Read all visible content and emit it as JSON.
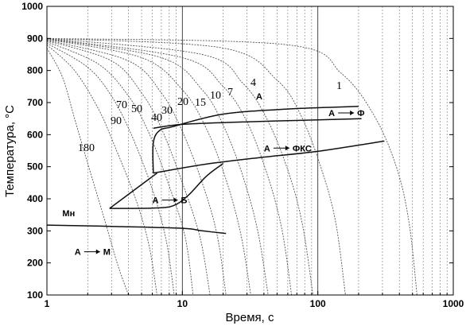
{
  "chart_data": {
    "type": "line",
    "title": "",
    "xlabel": "Время, с",
    "ylabel": "Температура, °C",
    "x_scale": "log",
    "xlim": [
      1,
      1000
    ],
    "ylim": [
      100,
      1000
    ],
    "x_ticks": [
      1,
      10,
      100,
      1000
    ],
    "x_tick_labels": [
      "1",
      "10",
      "100",
      "1000"
    ],
    "y_ticks": [
      100,
      200,
      300,
      400,
      500,
      600,
      700,
      800,
      900,
      1000
    ],
    "y_tick_labels": [
      "100",
      "200",
      "300",
      "400",
      "500",
      "600",
      "700",
      "800",
      "900",
      "1000"
    ],
    "grid": "vertical log gridlines (dotted), solid at decades",
    "cooling_curves": [
      {
        "label": "180",
        "points": [
          [
            1,
            870
          ],
          [
            1.3,
            780
          ],
          [
            1.6,
            650
          ],
          [
            2,
            510
          ],
          [
            2.6,
            350
          ],
          [
            3.3,
            200
          ],
          [
            4,
            100
          ]
        ]
      },
      {
        "label": "90",
        "points": [
          [
            1,
            880
          ],
          [
            1.6,
            800
          ],
          [
            2.4,
            680
          ],
          [
            3.2,
            560
          ],
          [
            4.6,
            390
          ],
          [
            5.7,
            250
          ],
          [
            6.5,
            100
          ]
        ]
      },
      {
        "label": "70",
        "points": [
          [
            1,
            885
          ],
          [
            2,
            810
          ],
          [
            3,
            720
          ],
          [
            4.2,
            600
          ],
          [
            6,
            430
          ],
          [
            7.6,
            270
          ],
          [
            8.7,
            100
          ]
        ]
      },
      {
        "label": "50",
        "points": [
          [
            1,
            890
          ],
          [
            2.4,
            820
          ],
          [
            4,
            720
          ],
          [
            5.6,
            610
          ],
          [
            8,
            440
          ],
          [
            10.5,
            280
          ],
          [
            12,
            100
          ]
        ]
      },
      {
        "label": "40",
        "points": [
          [
            1,
            893
          ],
          [
            3,
            830
          ],
          [
            5,
            730
          ],
          [
            7,
            620
          ],
          [
            10,
            450
          ],
          [
            13.5,
            280
          ],
          [
            16,
            100
          ]
        ]
      },
      {
        "label": "30",
        "points": [
          [
            1,
            895
          ],
          [
            4,
            830
          ],
          [
            7,
            730
          ],
          [
            10,
            610
          ],
          [
            14,
            450
          ],
          [
            18,
            290
          ],
          [
            21,
            100
          ]
        ]
      },
      {
        "label": "20",
        "points": [
          [
            1,
            897
          ],
          [
            5,
            840
          ],
          [
            10,
            740
          ],
          [
            15,
            620
          ],
          [
            21,
            460
          ],
          [
            27,
            290
          ],
          [
            32,
            100
          ]
        ]
      },
      {
        "label": "15",
        "points": [
          [
            1,
            898
          ],
          [
            7,
            840
          ],
          [
            14,
            740
          ],
          [
            20,
            630
          ],
          [
            28,
            470
          ],
          [
            36,
            300
          ],
          [
            43,
            100
          ]
        ]
      },
      {
        "label": "10",
        "points": [
          [
            1,
            899
          ],
          [
            10,
            840
          ],
          [
            20,
            750
          ],
          [
            30,
            640
          ],
          [
            42,
            480
          ],
          [
            54,
            310
          ],
          [
            64,
            100
          ]
        ]
      },
      {
        "label": "7",
        "points": [
          [
            1,
            900
          ],
          [
            14,
            850
          ],
          [
            28,
            760
          ],
          [
            42,
            650
          ],
          [
            60,
            490
          ],
          [
            77,
            320
          ],
          [
            92,
            100
          ]
        ]
      },
      {
        "label": "4",
        "points": [
          [
            1,
            900
          ],
          [
            20,
            870
          ],
          [
            50,
            770
          ],
          [
            75,
            660
          ],
          [
            105,
            500
          ],
          [
            135,
            330
          ],
          [
            160,
            100
          ]
        ]
      },
      {
        "label": "1",
        "points": [
          [
            1,
            900
          ],
          [
            60,
            880
          ],
          [
            150,
            790
          ],
          [
            260,
            660
          ],
          [
            380,
            500
          ],
          [
            470,
            330
          ],
          [
            540,
            100
          ]
        ]
      }
    ],
    "phase_boundaries": [
      {
        "name": "A→Ф start",
        "points": [
          [
            6.1,
            620
          ],
          [
            10,
            632
          ],
          [
            30,
            640
          ],
          [
            100,
            646
          ],
          [
            210,
            650
          ]
        ]
      },
      {
        "name": "A→ФКС start",
        "points": [
          [
            6.1,
            480
          ],
          [
            6.1,
            575
          ],
          [
            6.8,
            613
          ],
          [
            8.5,
            625
          ],
          [
            20,
            664
          ],
          [
            60,
            680
          ],
          [
            200,
            688
          ]
        ]
      },
      {
        "name": "A→ФКС end",
        "points": [
          [
            6.1,
            480
          ],
          [
            15,
            508
          ],
          [
            40,
            530
          ],
          [
            100,
            548
          ],
          [
            310,
            580
          ]
        ]
      },
      {
        "name": "A→Б start",
        "points": [
          [
            2.9,
            370
          ],
          [
            4.5,
            430
          ],
          [
            6.5,
            480
          ]
        ]
      },
      {
        "name": "A→Б end",
        "points": [
          [
            2.9,
            370
          ],
          [
            6,
            371
          ],
          [
            8.5,
            378
          ],
          [
            11,
            410
          ],
          [
            15,
            470
          ],
          [
            20,
            510
          ]
        ]
      },
      {
        "name": "Мн",
        "points": [
          [
            1,
            318
          ],
          [
            3,
            314
          ],
          [
            10,
            308
          ],
          [
            14,
            300
          ],
          [
            21,
            292
          ]
        ]
      }
    ],
    "annotations": [
      {
        "text": "A",
        "x": 35,
        "y": 710
      },
      {
        "text": "A ⟶ Ф",
        "x": 120,
        "y": 658
      },
      {
        "text": "A ⟶ ФКС",
        "x": 40,
        "y": 548
      },
      {
        "text": "A ⟶ Б",
        "x": 6,
        "y": 386
      },
      {
        "text": "Мн",
        "x": 1.3,
        "y": 345
      },
      {
        "text": "A ⟶ M",
        "x": 1.6,
        "y": 225
      }
    ]
  }
}
